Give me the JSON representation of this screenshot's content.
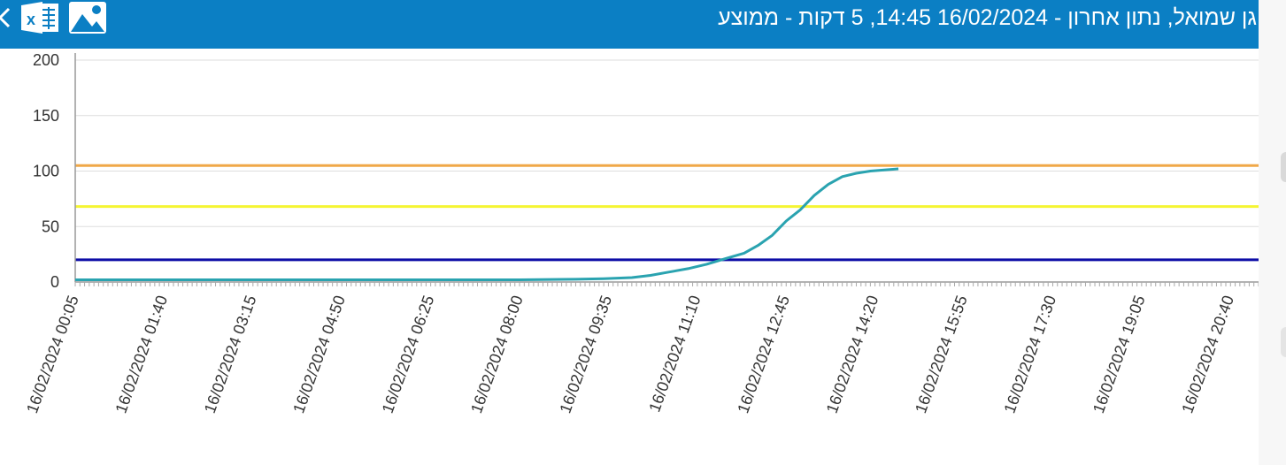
{
  "header": {
    "title": "גן שמואל, נתון אחרון - 16/02/2024 14:45, 5 דקות - ממוצע",
    "icons": [
      "back-icon",
      "excel-icon",
      "image-icon"
    ],
    "excel_glyph": "x",
    "background_color": "#0b7fc4"
  },
  "chart_data": {
    "type": "line",
    "ylim": [
      0,
      200
    ],
    "yticks": [
      0,
      50,
      100,
      150,
      200
    ],
    "xticks": [
      "16/02/2024 00:05",
      "16/02/2024 01:40",
      "16/02/2024 03:15",
      "16/02/2024 04:50",
      "16/02/2024 06:25",
      "16/02/2024 08:00",
      "16/02/2024 09:35",
      "16/02/2024 11:10",
      "16/02/2024 12:45",
      "16/02/2024 14:20",
      "16/02/2024 15:55",
      "16/02/2024 17:30",
      "16/02/2024 19:05",
      "16/02/2024 20:40"
    ],
    "xlim": [
      "16/02/2024 00:05",
      "16/02/2024 21:10"
    ],
    "grid": true,
    "thresholds": [
      {
        "value": 105,
        "color": "#f0a848"
      },
      {
        "value": 68,
        "color": "#f5f532"
      },
      {
        "value": 20,
        "color": "#0d0da6"
      }
    ],
    "series": [
      {
        "color": "#2aa3b0",
        "x": [
          "16/02/2024 00:05",
          "16/02/2024 02:00",
          "16/02/2024 04:00",
          "16/02/2024 06:00",
          "16/02/2024 08:00",
          "16/02/2024 09:00",
          "16/02/2024 09:30",
          "16/02/2024 10:00",
          "16/02/2024 10:20",
          "16/02/2024 10:40",
          "16/02/2024 11:00",
          "16/02/2024 11:20",
          "16/02/2024 11:40",
          "16/02/2024 12:00",
          "16/02/2024 12:15",
          "16/02/2024 12:30",
          "16/02/2024 12:45",
          "16/02/2024 13:00",
          "16/02/2024 13:15",
          "16/02/2024 13:30",
          "16/02/2024 13:45",
          "16/02/2024 14:00",
          "16/02/2024 14:15",
          "16/02/2024 14:30",
          "16/02/2024 14:45"
        ],
        "values": [
          2,
          2,
          2,
          2,
          2,
          2.5,
          3,
          4,
          6,
          9,
          12,
          16,
          21,
          26,
          33,
          42,
          55,
          65,
          78,
          88,
          95,
          98,
          100,
          101,
          102
        ]
      }
    ]
  }
}
